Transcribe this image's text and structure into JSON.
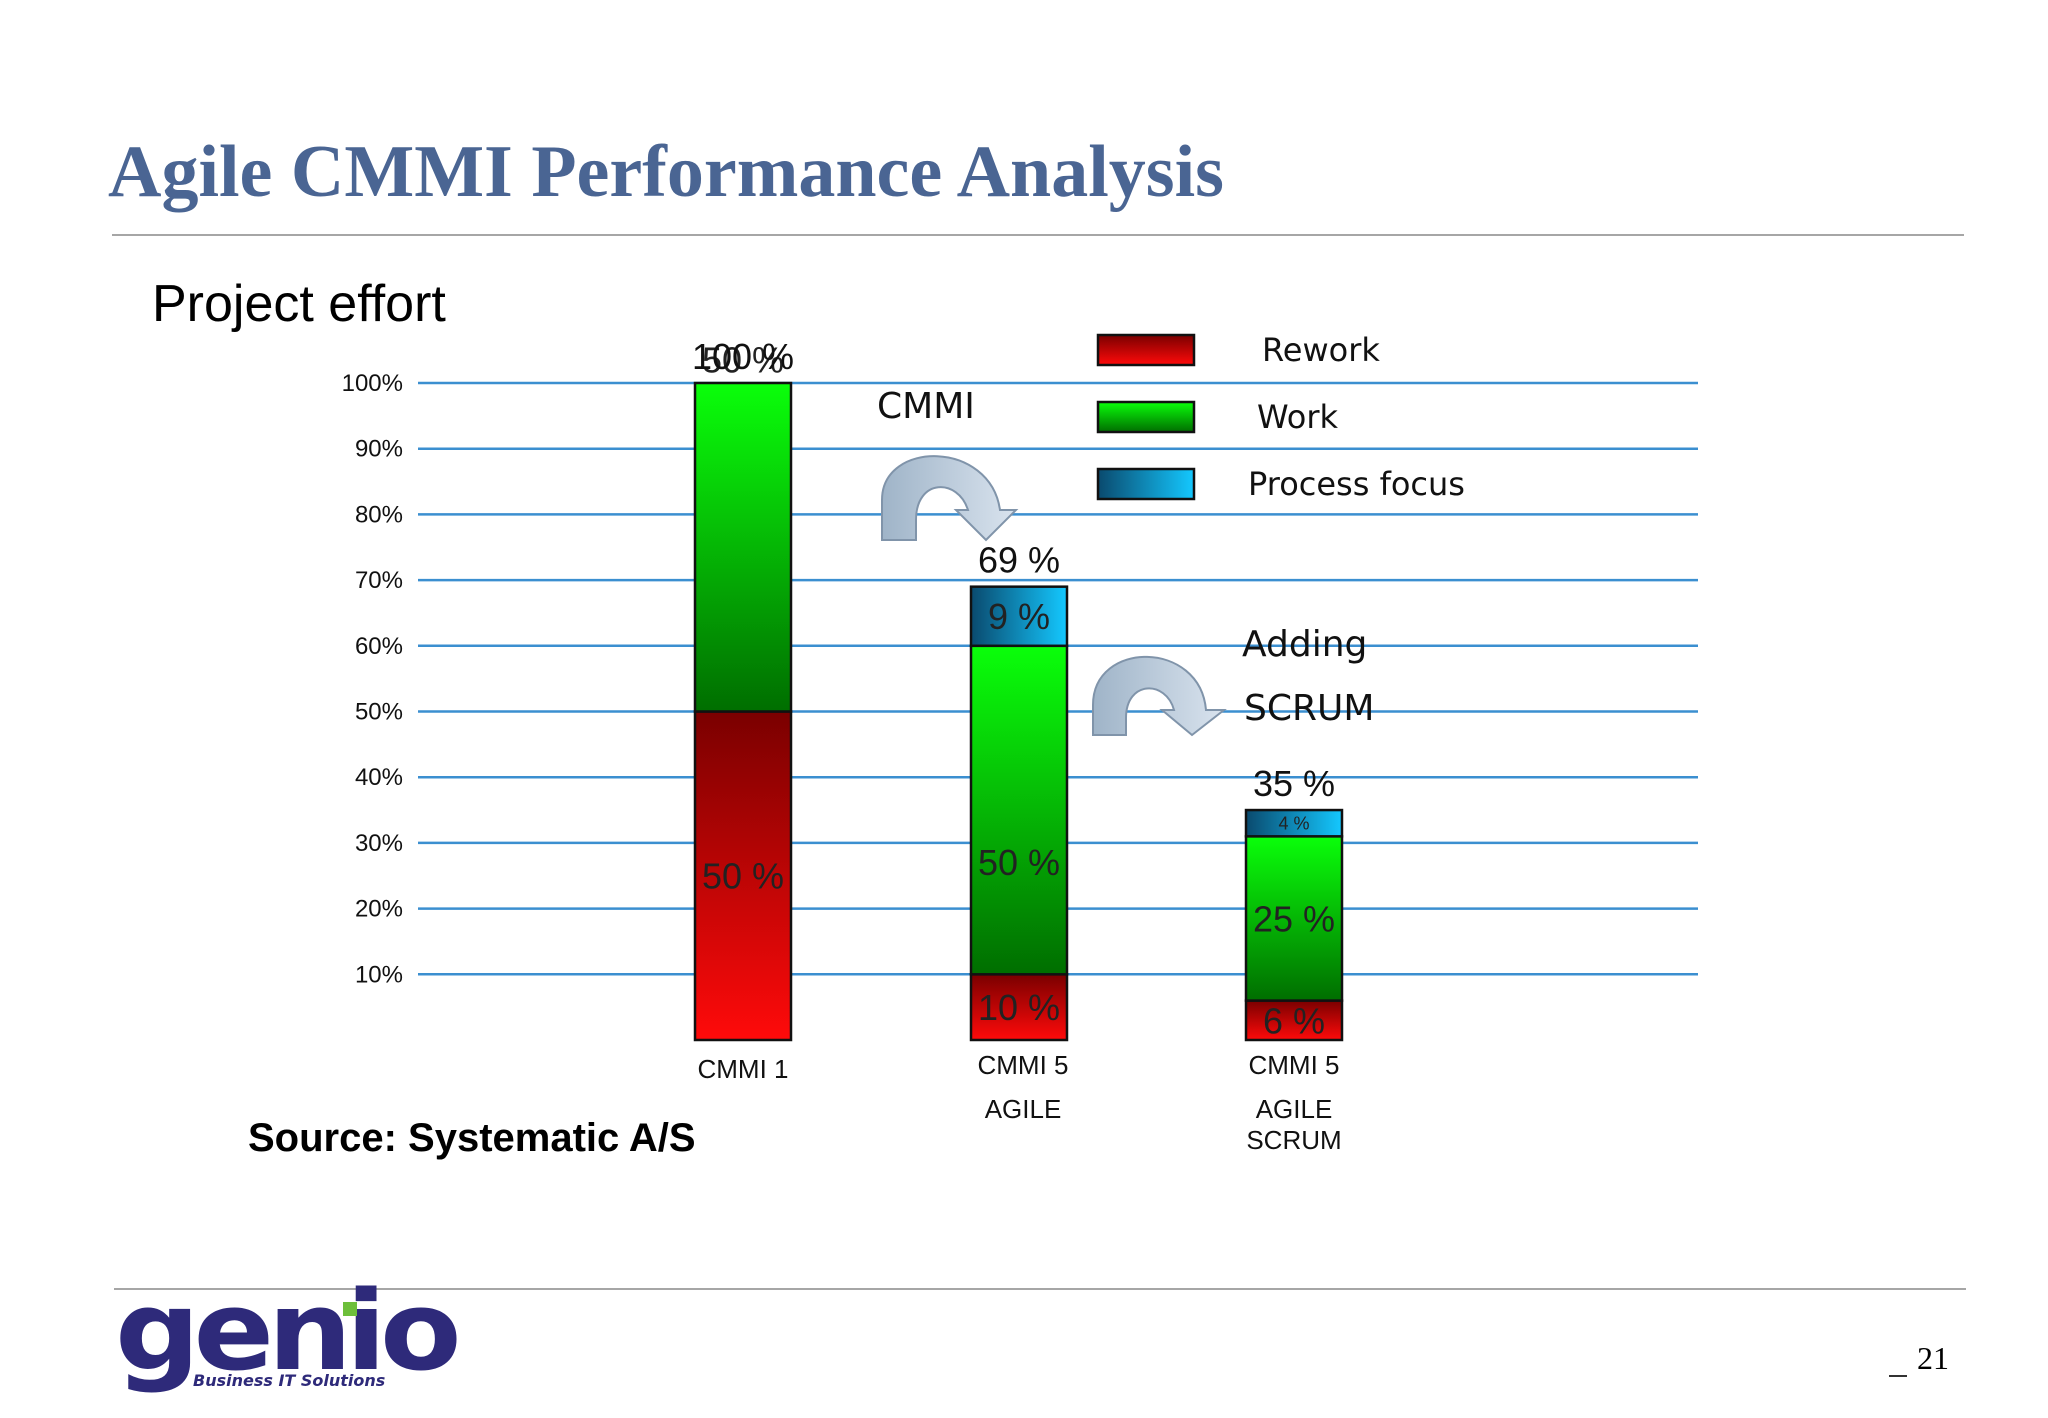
{
  "slide": {
    "title": "Agile CMMI Performance Analysis",
    "subtitle": "Project effort",
    "source": "Source: Systematic A/S",
    "page_number": "21"
  },
  "logo": {
    "word": "genio",
    "tagline": "Business IT Solutions"
  },
  "chart_data": {
    "type": "bar",
    "stacked": true,
    "ylim": [
      0,
      100
    ],
    "y_ticks": [
      10,
      20,
      30,
      40,
      50,
      60,
      70,
      80,
      90,
      100
    ],
    "y_tick_labels": [
      "10%",
      "20%",
      "30%",
      "40%",
      "50%",
      "60%",
      "70%",
      "80%",
      "90%",
      "100%"
    ],
    "grid": true,
    "categories": [
      {
        "line1": "CMMI 1",
        "line2": ""
      },
      {
        "line1": "CMMI 5",
        "line2": "AGILE"
      },
      {
        "line1": "CMMI 5",
        "line2": "AGILE SCRUM"
      }
    ],
    "series": [
      {
        "name": "Rework",
        "values": [
          50,
          10,
          6
        ],
        "labels": [
          "50 %",
          "10 %",
          "6 %"
        ],
        "color": "#ff0000"
      },
      {
        "name": "Work",
        "values": [
          50,
          50,
          25
        ],
        "labels": [
          "50 %",
          "50 %",
          "25 %"
        ],
        "color": "#00ff00"
      },
      {
        "name": "Process focus",
        "values": [
          0,
          9,
          4
        ],
        "labels": [
          "",
          "9 %",
          "4 %"
        ],
        "color": "#00bfff"
      }
    ],
    "totals": [
      100,
      69,
      35
    ],
    "total_labels": [
      "100 %",
      "69 %",
      "35 %"
    ],
    "legend": {
      "position": "top-right",
      "entries": [
        "Rework",
        "Work",
        "Process focus"
      ]
    },
    "annotations": [
      "CMMI",
      "Adding",
      "SCRUM"
    ]
  }
}
